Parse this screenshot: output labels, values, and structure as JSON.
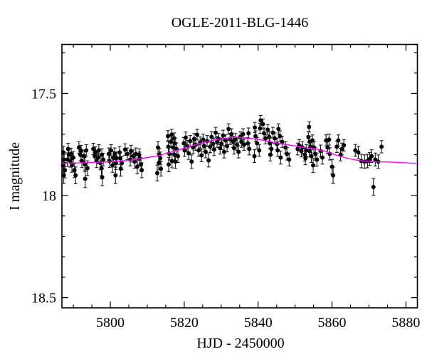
{
  "figure": {
    "title": "OGLE-2011-BLG-1446",
    "xlabel": "HJD - 2450000",
    "ylabel": "I magnitude"
  },
  "chart_data": {
    "type": "scatter",
    "title": "OGLE-2011-BLG-1446",
    "xlabel": "HJD - 2450000",
    "ylabel": "I magnitude",
    "xlim": [
      5786.9,
      5883.1
    ],
    "ylim": [
      17.26,
      18.55
    ],
    "y_axis_inverted": true,
    "grid": false,
    "legend": "none",
    "x_major_ticks": [
      5800,
      5820,
      5840,
      5860,
      5880
    ],
    "x_tick_labels": [
      "5800",
      "5820",
      "5840",
      "5860",
      "5880"
    ],
    "x_minor_tick_step": 5,
    "y_major_ticks": [
      17.5,
      18.0,
      18.5
    ],
    "y_tick_labels": [
      "17.5",
      "18",
      "18.5"
    ],
    "y_minor_tick_step": 0.1,
    "colors": {
      "background": "#ffffff",
      "frame": "#000000",
      "points": "#000000",
      "error_bars": "#1a1a1a",
      "model_curve": "#ff00ff"
    },
    "series": [
      {
        "name": "I-band photometry",
        "type": "scatter_errorbar",
        "points": [
          [
            5787.3,
            17.789,
            0.03
          ],
          [
            5787.5,
            17.824,
            0.032
          ],
          [
            5787.2,
            17.852,
            0.035
          ],
          [
            5787.7,
            17.876,
            0.038
          ],
          [
            5787.4,
            17.901,
            0.04
          ],
          [
            5788.6,
            17.772,
            0.028
          ],
          [
            5788.8,
            17.8,
            0.03
          ],
          [
            5788.4,
            17.824,
            0.033
          ],
          [
            5789.2,
            17.831,
            0.03
          ],
          [
            5789.4,
            17.796,
            0.028
          ],
          [
            5789.6,
            17.852,
            0.034
          ],
          [
            5790.0,
            17.814,
            0.03
          ],
          [
            5790.3,
            17.876,
            0.036
          ],
          [
            5790.6,
            17.901,
            0.041
          ],
          [
            5791.5,
            17.765,
            0.028
          ],
          [
            5791.9,
            17.8,
            0.03
          ],
          [
            5792.1,
            17.782,
            0.028
          ],
          [
            5792.3,
            17.831,
            0.032
          ],
          [
            5792.9,
            17.807,
            0.03
          ],
          [
            5793.1,
            17.848,
            0.034
          ],
          [
            5793.5,
            17.779,
            0.028
          ],
          [
            5793.8,
            17.866,
            0.036
          ],
          [
            5793.2,
            17.918,
            0.043
          ],
          [
            5795.4,
            17.772,
            0.028
          ],
          [
            5795.8,
            17.807,
            0.03
          ],
          [
            5796.0,
            17.789,
            0.028
          ],
          [
            5796.3,
            17.831,
            0.032
          ],
          [
            5796.7,
            17.814,
            0.03
          ],
          [
            5796.9,
            17.779,
            0.028
          ],
          [
            5797.3,
            17.841,
            0.033
          ],
          [
            5797.7,
            17.8,
            0.029
          ],
          [
            5797.6,
            17.866,
            0.036
          ],
          [
            5798.1,
            17.824,
            0.031
          ],
          [
            5797.8,
            17.911,
            0.041
          ],
          [
            5799.6,
            17.796,
            0.029
          ],
          [
            5799.8,
            17.831,
            0.031
          ],
          [
            5800.2,
            17.779,
            0.028
          ],
          [
            5800.6,
            17.852,
            0.034
          ],
          [
            5800.8,
            17.814,
            0.03
          ],
          [
            5801.2,
            17.796,
            0.029
          ],
          [
            5801.5,
            17.841,
            0.032
          ],
          [
            5801.7,
            17.817,
            0.03
          ],
          [
            5801.4,
            17.901,
            0.04
          ],
          [
            5802.5,
            17.789,
            0.028
          ],
          [
            5802.7,
            17.817,
            0.03
          ],
          [
            5803.1,
            17.841,
            0.032
          ],
          [
            5802.8,
            17.869,
            0.036
          ],
          [
            5804.0,
            17.775,
            0.028
          ],
          [
            5804.6,
            17.796,
            0.029
          ],
          [
            5805.4,
            17.824,
            0.031
          ],
          [
            5805.6,
            17.782,
            0.028
          ],
          [
            5806.2,
            17.807,
            0.03
          ],
          [
            5806.6,
            17.834,
            0.032
          ],
          [
            5806.9,
            17.796,
            0.029
          ],
          [
            5807.3,
            17.859,
            0.035
          ],
          [
            5807.9,
            17.817,
            0.03
          ],
          [
            5808.3,
            17.848,
            0.033
          ],
          [
            5808.5,
            17.876,
            0.037
          ],
          [
            5807.8,
            17.8,
            0.029
          ],
          [
            5812.9,
            17.765,
            0.029
          ],
          [
            5813.3,
            17.8,
            0.031
          ],
          [
            5813.5,
            17.817,
            0.03
          ],
          [
            5813.1,
            17.841,
            0.033
          ],
          [
            5813.7,
            17.869,
            0.036
          ],
          [
            5812.7,
            17.89,
            0.039
          ],
          [
            5815.6,
            17.709,
            0.027
          ],
          [
            5816.6,
            17.702,
            0.026
          ],
          [
            5817.3,
            17.72,
            0.027
          ],
          [
            5816.4,
            17.737,
            0.028
          ],
          [
            5817.5,
            17.744,
            0.028
          ],
          [
            5815.7,
            17.761,
            0.029
          ],
          [
            5817.0,
            17.765,
            0.029
          ],
          [
            5817.9,
            17.772,
            0.029
          ],
          [
            5816.0,
            17.796,
            0.03
          ],
          [
            5817.4,
            17.8,
            0.03
          ],
          [
            5818.3,
            17.807,
            0.031
          ],
          [
            5816.7,
            17.831,
            0.033
          ],
          [
            5817.6,
            17.834,
            0.033
          ],
          [
            5815.8,
            17.848,
            0.035
          ],
          [
            5819.9,
            17.744,
            0.028
          ],
          [
            5820.1,
            17.779,
            0.029
          ],
          [
            5820.4,
            17.716,
            0.027
          ],
          [
            5820.8,
            17.758,
            0.028
          ],
          [
            5821.2,
            17.793,
            0.03
          ],
          [
            5821.6,
            17.733,
            0.027
          ],
          [
            5822.0,
            17.834,
            0.033
          ],
          [
            5822.4,
            17.765,
            0.028
          ],
          [
            5822.7,
            17.723,
            0.027
          ],
          [
            5823.1,
            17.751,
            0.028
          ],
          [
            5823.5,
            17.702,
            0.026
          ],
          [
            5823.9,
            17.779,
            0.029
          ],
          [
            5824.3,
            17.74,
            0.027
          ],
          [
            5824.7,
            17.803,
            0.031
          ],
          [
            5825.1,
            17.726,
            0.027
          ],
          [
            5825.4,
            17.758,
            0.028
          ],
          [
            5825.8,
            17.786,
            0.029
          ],
          [
            5826.2,
            17.733,
            0.027
          ],
          [
            5826.6,
            17.828,
            0.032
          ],
          [
            5827.0,
            17.761,
            0.028
          ],
          [
            5827.4,
            17.713,
            0.026
          ],
          [
            5827.8,
            17.747,
            0.028
          ],
          [
            5828.1,
            17.775,
            0.029
          ],
          [
            5828.5,
            17.692,
            0.026
          ],
          [
            5828.9,
            17.737,
            0.027
          ],
          [
            5829.3,
            17.723,
            0.027
          ],
          [
            5829.7,
            17.768,
            0.029
          ],
          [
            5830.1,
            17.747,
            0.028
          ],
          [
            5830.5,
            17.706,
            0.026
          ],
          [
            5830.8,
            17.786,
            0.03
          ],
          [
            5831.2,
            17.73,
            0.027
          ],
          [
            5831.6,
            17.758,
            0.028
          ],
          [
            5832.0,
            17.674,
            0.025
          ],
          [
            5832.4,
            17.723,
            0.027
          ],
          [
            5832.8,
            17.699,
            0.026
          ],
          [
            5833.2,
            17.737,
            0.027
          ],
          [
            5833.5,
            17.768,
            0.029
          ],
          [
            5833.9,
            17.723,
            0.027
          ],
          [
            5834.3,
            17.751,
            0.028
          ],
          [
            5834.7,
            17.786,
            0.03
          ],
          [
            5835.1,
            17.713,
            0.026
          ],
          [
            5835.5,
            17.737,
            0.027
          ],
          [
            5835.9,
            17.699,
            0.026
          ],
          [
            5836.2,
            17.751,
            0.028
          ],
          [
            5837.4,
            17.695,
            0.026
          ],
          [
            5837.2,
            17.744,
            0.028
          ],
          [
            5837.6,
            17.772,
            0.029
          ],
          [
            5839.1,
            17.667,
            0.025
          ],
          [
            5839.3,
            17.709,
            0.026
          ],
          [
            5839.7,
            17.744,
            0.028
          ],
          [
            5840.3,
            17.779,
            0.029
          ],
          [
            5840.7,
            17.632,
            0.024
          ],
          [
            5841.3,
            17.65,
            0.025
          ],
          [
            5840.5,
            17.671,
            0.025
          ],
          [
            5841.6,
            17.695,
            0.026
          ],
          [
            5842.0,
            17.72,
            0.027
          ],
          [
            5842.6,
            17.678,
            0.025
          ],
          [
            5843.0,
            17.713,
            0.026
          ],
          [
            5843.2,
            17.744,
            0.028
          ],
          [
            5843.6,
            17.772,
            0.029
          ],
          [
            5843.3,
            17.8,
            0.031
          ],
          [
            5839.0,
            17.807,
            0.031
          ],
          [
            5844.0,
            17.692,
            0.026
          ],
          [
            5844.5,
            17.72,
            0.027
          ],
          [
            5845.1,
            17.747,
            0.028
          ],
          [
            5845.5,
            17.674,
            0.025
          ],
          [
            5845.9,
            17.709,
            0.026
          ],
          [
            5845.3,
            17.779,
            0.029
          ],
          [
            5846.1,
            17.814,
            0.032
          ],
          [
            5846.5,
            17.737,
            0.027
          ],
          [
            5847.4,
            17.765,
            0.028
          ],
          [
            5847.8,
            17.796,
            0.03
          ],
          [
            5848.4,
            17.824,
            0.032
          ],
          [
            5850.7,
            17.772,
            0.029
          ],
          [
            5851.1,
            17.754,
            0.028
          ],
          [
            5851.7,
            17.782,
            0.029
          ],
          [
            5852.0,
            17.765,
            0.028
          ],
          [
            5852.6,
            17.8,
            0.031
          ],
          [
            5853.0,
            17.779,
            0.029
          ],
          [
            5852.8,
            17.817,
            0.032
          ],
          [
            5853.8,
            17.664,
            0.025
          ],
          [
            5853.6,
            17.713,
            0.026
          ],
          [
            5854.0,
            17.737,
            0.027
          ],
          [
            5854.2,
            17.761,
            0.028
          ],
          [
            5853.9,
            17.782,
            0.029
          ],
          [
            5854.4,
            17.807,
            0.031
          ],
          [
            5854.7,
            17.73,
            0.027
          ],
          [
            5855.1,
            17.765,
            0.028
          ],
          [
            5855.5,
            17.796,
            0.03
          ],
          [
            5855.9,
            17.824,
            0.032
          ],
          [
            5854.9,
            17.852,
            0.035
          ],
          [
            5856.9,
            17.782,
            0.029
          ],
          [
            5857.4,
            17.814,
            0.032
          ],
          [
            5858.4,
            17.73,
            0.027
          ],
          [
            5859.2,
            17.726,
            0.027
          ],
          [
            5858.8,
            17.765,
            0.028
          ],
          [
            5859.4,
            17.796,
            0.03
          ],
          [
            5860.0,
            17.859,
            0.036
          ],
          [
            5860.3,
            17.901,
            0.04
          ],
          [
            5861.3,
            17.761,
            0.028
          ],
          [
            5861.7,
            17.73,
            0.027
          ],
          [
            5862.7,
            17.772,
            0.029
          ],
          [
            5863.2,
            17.754,
            0.028
          ],
          [
            5862.3,
            17.8,
            0.031
          ],
          [
            5866.3,
            17.779,
            0.029
          ],
          [
            5867.1,
            17.789,
            0.03
          ],
          [
            5867.9,
            17.831,
            0.033
          ],
          [
            5868.8,
            17.834,
            0.033
          ],
          [
            5869.6,
            17.831,
            0.033
          ],
          [
            5870.2,
            17.821,
            0.032
          ],
          [
            5870.7,
            17.807,
            0.031
          ],
          [
            5871.7,
            17.824,
            0.032
          ],
          [
            5872.5,
            17.834,
            0.033
          ],
          [
            5873.4,
            17.761,
            0.03
          ],
          [
            5871.2,
            17.958,
            0.041
          ]
        ]
      },
      {
        "name": "model",
        "type": "line",
        "points": [
          [
            5786.9,
            17.843
          ],
          [
            5790,
            17.841
          ],
          [
            5795,
            17.838
          ],
          [
            5800,
            17.835
          ],
          [
            5805,
            17.828
          ],
          [
            5809,
            17.817
          ],
          [
            5813,
            17.805
          ],
          [
            5816,
            17.79
          ],
          [
            5820,
            17.768
          ],
          [
            5824,
            17.746
          ],
          [
            5828,
            17.728
          ],
          [
            5831,
            17.72
          ],
          [
            5834,
            17.714
          ],
          [
            5836.6,
            17.718
          ],
          [
            5840,
            17.725
          ],
          [
            5843,
            17.735
          ],
          [
            5846,
            17.746
          ],
          [
            5849,
            17.754
          ],
          [
            5852,
            17.763
          ],
          [
            5855,
            17.77
          ],
          [
            5858,
            17.782
          ],
          [
            5861,
            17.801
          ],
          [
            5864,
            17.817
          ],
          [
            5866.5,
            17.826
          ],
          [
            5869,
            17.831
          ],
          [
            5872,
            17.835
          ],
          [
            5876,
            17.836
          ],
          [
            5880,
            17.84
          ],
          [
            5883.1,
            17.843
          ]
        ]
      }
    ]
  }
}
